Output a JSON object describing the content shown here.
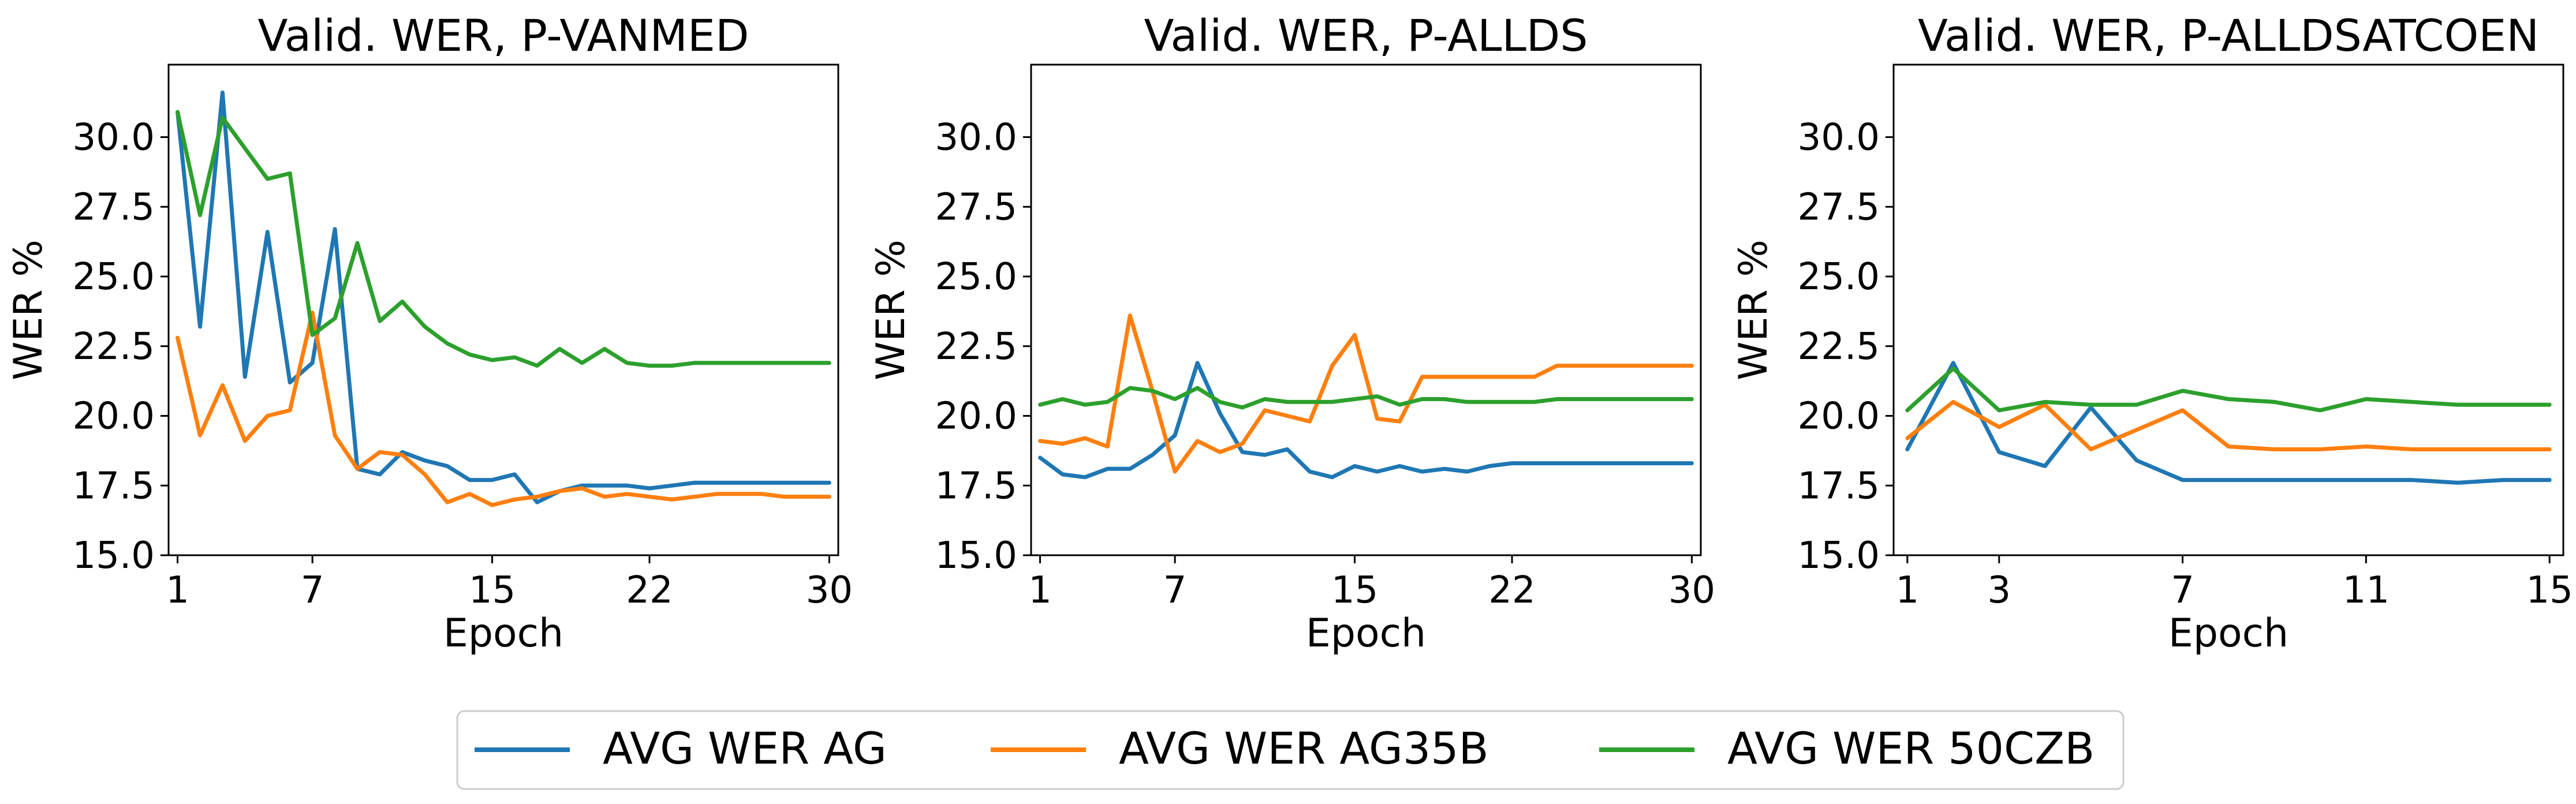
{
  "chart_data": [
    {
      "type": "line",
      "title": "Valid. WER, P-VANMED",
      "xlabel": "Epoch",
      "ylabel": "WER %",
      "xlim": [
        0.6,
        30.4
      ],
      "ylim": [
        15.0,
        32.6
      ],
      "xticks": [
        1,
        7,
        15,
        22,
        30
      ],
      "yticks": [
        15.0,
        17.5,
        20.0,
        22.5,
        25.0,
        27.5,
        30.0
      ],
      "ytick_labels": [
        "15.0",
        "17.5",
        "20.0",
        "22.5",
        "25.0",
        "27.5",
        "30.0"
      ],
      "grid": false,
      "series": [
        {
          "name": "AVG WER AG",
          "color": "#1f77b4",
          "x": [
            1,
            2,
            3,
            4,
            5,
            6,
            7,
            8,
            9,
            10,
            11,
            12,
            13,
            14,
            15,
            16,
            17,
            18,
            19,
            20,
            21,
            22,
            23,
            24,
            25,
            26,
            27,
            28,
            29,
            30
          ],
          "y": [
            30.9,
            23.2,
            31.6,
            21.4,
            26.6,
            21.2,
            21.9,
            26.7,
            18.1,
            17.9,
            18.7,
            18.4,
            18.2,
            17.7,
            17.7,
            17.9,
            16.9,
            17.3,
            17.5,
            17.5,
            17.5,
            17.4,
            17.5,
            17.6,
            17.6,
            17.6,
            17.6,
            17.6,
            17.6,
            17.6
          ]
        },
        {
          "name": "AVG WER AG35B",
          "color": "#ff7f0e",
          "x": [
            1,
            2,
            3,
            4,
            5,
            6,
            7,
            8,
            9,
            10,
            11,
            12,
            13,
            14,
            15,
            16,
            17,
            18,
            19,
            20,
            21,
            22,
            23,
            24,
            25,
            26,
            27,
            28,
            29,
            30
          ],
          "y": [
            22.8,
            19.3,
            21.1,
            19.1,
            20.0,
            20.2,
            23.7,
            19.3,
            18.1,
            18.7,
            18.6,
            17.9,
            16.9,
            17.2,
            16.8,
            17.0,
            17.1,
            17.3,
            17.4,
            17.1,
            17.2,
            17.1,
            17.0,
            17.1,
            17.2,
            17.2,
            17.2,
            17.1,
            17.1,
            17.1
          ]
        },
        {
          "name": "AVG WER 50CZB",
          "color": "#2ca02c",
          "x": [
            1,
            2,
            3,
            4,
            5,
            6,
            7,
            8,
            9,
            10,
            11,
            12,
            13,
            14,
            15,
            16,
            17,
            18,
            19,
            20,
            21,
            22,
            23,
            24,
            25,
            26,
            27,
            28,
            29,
            30
          ],
          "y": [
            30.9,
            27.2,
            30.7,
            29.6,
            28.5,
            28.7,
            22.9,
            23.5,
            26.2,
            23.4,
            24.1,
            23.2,
            22.6,
            22.2,
            22.0,
            22.1,
            21.8,
            22.4,
            21.9,
            22.4,
            21.9,
            21.8,
            21.8,
            21.9,
            21.9,
            21.9,
            21.9,
            21.9,
            21.9,
            21.9
          ]
        }
      ]
    },
    {
      "type": "line",
      "title": "Valid. WER, P-ALLDS",
      "xlabel": "Epoch",
      "ylabel": "WER %",
      "xlim": [
        0.6,
        30.4
      ],
      "ylim": [
        15.0,
        32.6
      ],
      "xticks": [
        1,
        7,
        15,
        22,
        30
      ],
      "yticks": [
        15.0,
        17.5,
        20.0,
        22.5,
        25.0,
        27.5,
        30.0
      ],
      "ytick_labels": [
        "15.0",
        "17.5",
        "20.0",
        "22.5",
        "25.0",
        "27.5",
        "30.0"
      ],
      "grid": false,
      "series": [
        {
          "name": "AVG WER AG",
          "color": "#1f77b4",
          "x": [
            1,
            2,
            3,
            4,
            5,
            6,
            7,
            8,
            9,
            10,
            11,
            12,
            13,
            14,
            15,
            16,
            17,
            18,
            19,
            20,
            21,
            22,
            23,
            24,
            25,
            26,
            27,
            28,
            29,
            30
          ],
          "y": [
            18.5,
            17.9,
            17.8,
            18.1,
            18.1,
            18.6,
            19.3,
            21.9,
            20.1,
            18.7,
            18.6,
            18.8,
            18.0,
            17.8,
            18.2,
            18.0,
            18.2,
            18.0,
            18.1,
            18.0,
            18.2,
            18.3,
            18.3,
            18.3,
            18.3,
            18.3,
            18.3,
            18.3,
            18.3,
            18.3
          ]
        },
        {
          "name": "AVG WER AG35B",
          "color": "#ff7f0e",
          "x": [
            1,
            2,
            3,
            4,
            5,
            6,
            7,
            8,
            9,
            10,
            11,
            12,
            13,
            14,
            15,
            16,
            17,
            18,
            19,
            20,
            21,
            22,
            23,
            24,
            25,
            26,
            27,
            28,
            29,
            30
          ],
          "y": [
            19.1,
            19.0,
            19.2,
            18.9,
            23.6,
            20.9,
            18.0,
            19.1,
            18.7,
            19.0,
            20.2,
            20.0,
            19.8,
            21.8,
            22.9,
            19.9,
            19.8,
            21.4,
            21.4,
            21.4,
            21.4,
            21.4,
            21.4,
            21.8,
            21.8,
            21.8,
            21.8,
            21.8,
            21.8,
            21.8
          ]
        },
        {
          "name": "AVG WER 50CZB",
          "color": "#2ca02c",
          "x": [
            1,
            2,
            3,
            4,
            5,
            6,
            7,
            8,
            9,
            10,
            11,
            12,
            13,
            14,
            15,
            16,
            17,
            18,
            19,
            20,
            21,
            22,
            23,
            24,
            25,
            26,
            27,
            28,
            29,
            30
          ],
          "y": [
            20.4,
            20.6,
            20.4,
            20.5,
            21.0,
            20.9,
            20.6,
            21.0,
            20.5,
            20.3,
            20.6,
            20.5,
            20.5,
            20.5,
            20.6,
            20.7,
            20.4,
            20.6,
            20.6,
            20.5,
            20.5,
            20.5,
            20.5,
            20.6,
            20.6,
            20.6,
            20.6,
            20.6,
            20.6,
            20.6
          ]
        }
      ]
    },
    {
      "type": "line",
      "title": "Valid. WER, P-ALLDSATCOEN",
      "xlabel": "Epoch",
      "ylabel": "WER %",
      "xlim": [
        0.7,
        15.3
      ],
      "ylim": [
        15.0,
        32.6
      ],
      "xticks": [
        1,
        3,
        7,
        11,
        15
      ],
      "yticks": [
        15.0,
        17.5,
        20.0,
        22.5,
        25.0,
        27.5,
        30.0
      ],
      "ytick_labels": [
        "15.0",
        "17.5",
        "20.0",
        "22.5",
        "25.0",
        "27.5",
        "30.0"
      ],
      "grid": false,
      "series": [
        {
          "name": "AVG WER AG",
          "color": "#1f77b4",
          "x": [
            1,
            2,
            3,
            4,
            5,
            6,
            7,
            8,
            9,
            10,
            11,
            12,
            13,
            14,
            15
          ],
          "y": [
            18.8,
            21.9,
            18.7,
            18.2,
            20.3,
            18.4,
            17.7,
            17.7,
            17.7,
            17.7,
            17.7,
            17.7,
            17.6,
            17.7,
            17.7
          ]
        },
        {
          "name": "AVG WER AG35B",
          "color": "#ff7f0e",
          "x": [
            1,
            2,
            3,
            4,
            5,
            6,
            7,
            8,
            9,
            10,
            11,
            12,
            13,
            14,
            15
          ],
          "y": [
            19.2,
            20.5,
            19.6,
            20.4,
            18.8,
            19.5,
            20.2,
            18.9,
            18.8,
            18.8,
            18.9,
            18.8,
            18.8,
            18.8,
            18.8
          ]
        },
        {
          "name": "AVG WER 50CZB",
          "color": "#2ca02c",
          "x": [
            1,
            2,
            3,
            4,
            5,
            6,
            7,
            8,
            9,
            10,
            11,
            12,
            13,
            14,
            15
          ],
          "y": [
            20.2,
            21.7,
            20.2,
            20.5,
            20.4,
            20.4,
            20.9,
            20.6,
            20.5,
            20.2,
            20.6,
            20.5,
            20.4,
            20.4,
            20.4
          ]
        }
      ]
    }
  ],
  "legend": {
    "placement": "bottom-center",
    "entries": [
      {
        "label": "AVG WER AG",
        "color": "#1f77b4"
      },
      {
        "label": "AVG WER AG35B",
        "color": "#ff7f0e"
      },
      {
        "label": "AVG WER 50CZB",
        "color": "#2ca02c"
      }
    ]
  }
}
